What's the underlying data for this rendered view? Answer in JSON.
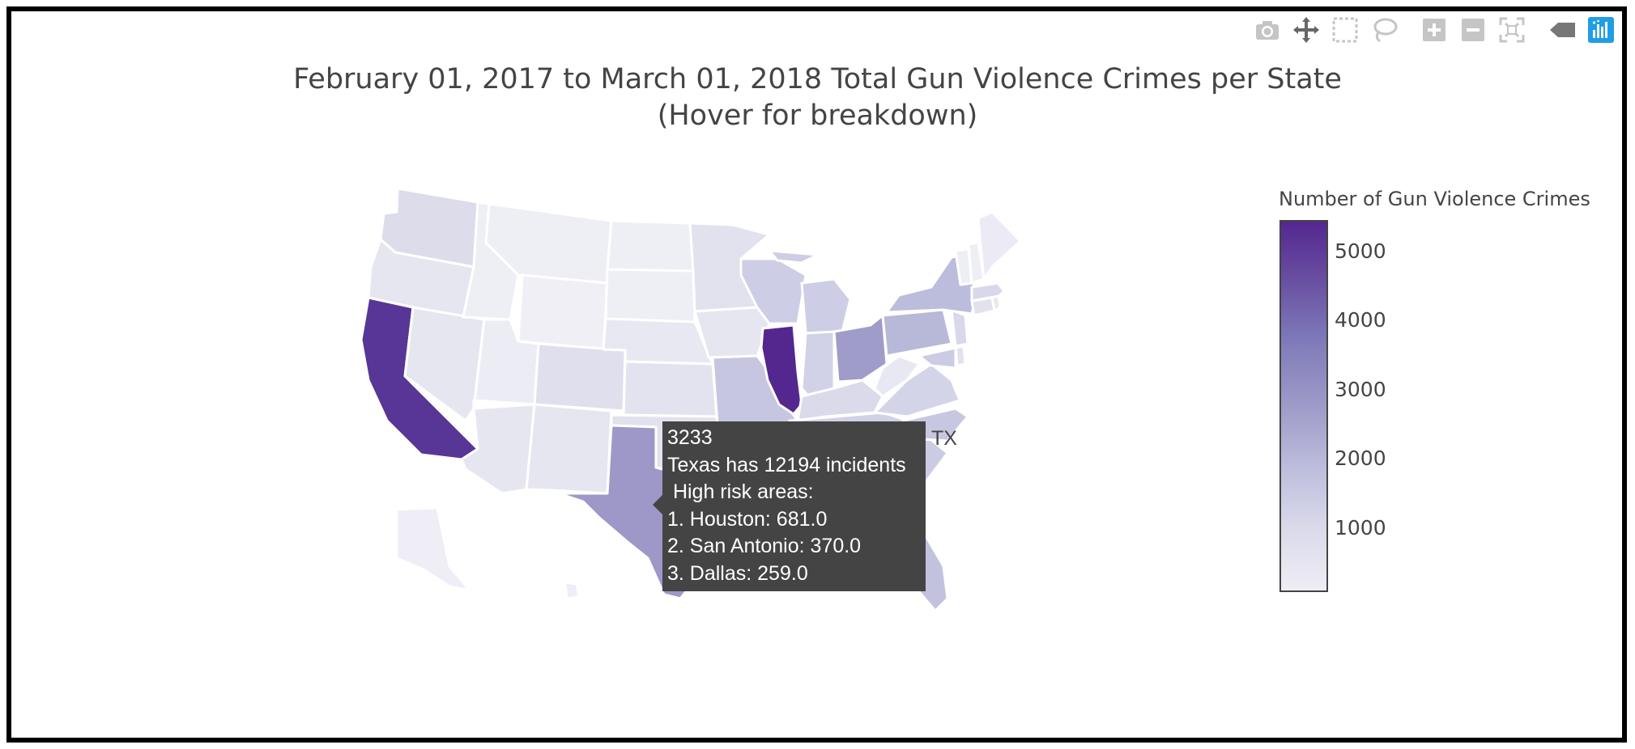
{
  "title_line1": "February 01, 2017 to March 01, 2018 Total Gun Violence Crimes per State",
  "title_line2": "(Hover for breakdown)",
  "colorbar": {
    "title": "Number of Gun Violence Crimes",
    "ticks": [
      "5000",
      "4000",
      "3000",
      "2000",
      "1000"
    ],
    "colorscale": [
      "#efedf5",
      "#dadaeb",
      "#bcbddc",
      "#9e9ac8",
      "#807dba",
      "#6a51a3",
      "#54278f"
    ]
  },
  "modebar": {
    "icons": [
      "camera-icon",
      "pan-icon",
      "box-select-icon",
      "lasso-icon",
      "zoom-in-icon",
      "zoom-out-icon",
      "reset-icon",
      "hover-toggle-icon",
      "plotly-logo-icon"
    ],
    "active_color": "#1f9ee4",
    "icon_color": "#c5c5c5"
  },
  "tooltip": {
    "value": "3233",
    "line1": "Texas has 12194 incidents",
    "line2": " High risk areas:",
    "line3": "1. Houston: 681.0",
    "line4": "2. San Antonio: 370.0",
    "line5": "3. Dallas: 259.0",
    "state_label": "TX"
  },
  "map_data": {
    "CA": "#573697",
    "IL": "#54278f",
    "TX": "#9d98c7",
    "OH": "#a09cc9",
    "PA": "#b8b8d9",
    "NY": "#bcbcdc",
    "GA": "#c2c2de",
    "FL": "#c2c2de",
    "MO": "#c6c6e1",
    "WI": "#cdcde5",
    "MI": "#cdcde5",
    "IN": "#d1d1e7",
    "NC": "#c7c7e2",
    "VA": "#d4d4e9",
    "MD": "#cbcbe4",
    "SC": "#cbcbe4",
    "TN": "#d1d1e7",
    "KY": "#dadaeb",
    "LA": "#cbcbe4",
    "AL": "#d4d4e9",
    "WA": "#dcdceb",
    "CO": "#dfdfee",
    "MN": "#e2e2ef",
    "OK": "#e2e2ef",
    "NJ": "#d8d8ea",
    "MA": "#d8d8ea",
    "NM": "#e6e6f1",
    "AZ": "#e6e6f1",
    "NV": "#e6e6f1",
    "OR": "#e6e6f1",
    "KS": "#e3e3f0",
    "IA": "#e6e6f1",
    "NE": "#e8e8f2",
    "UT": "#ececf4",
    "AR": "#e2e2ef",
    "MS": "#e2e2ef",
    "WV": "#e8e8f2",
    "CT": "#e2e2ef",
    "ID": "#eeeef5",
    "MT": "#eeeef5",
    "WY": "#f0eff6",
    "SD": "#eeeef5",
    "ND": "#eeeef5",
    "ME": "#eceaf4",
    "NH": "#eeeef5",
    "VT": "#eeeef5",
    "RI": "#e8e8f2",
    "DE": "#e2e2ef",
    "AK": "#efedf5",
    "HI": "#efedf5"
  }
}
